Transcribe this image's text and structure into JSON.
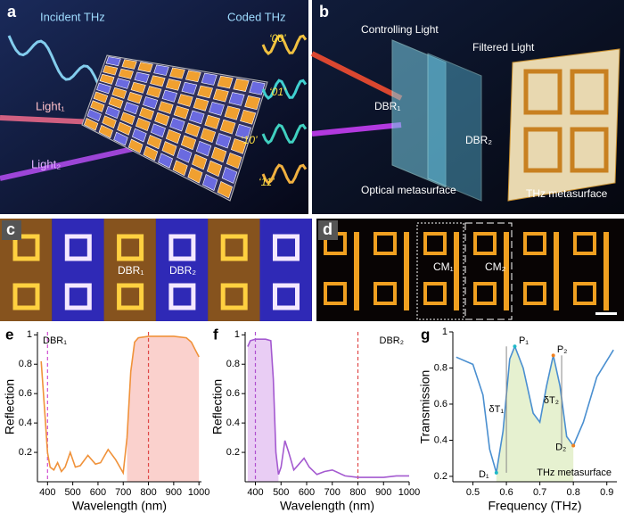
{
  "panels": {
    "a": {
      "label": "a",
      "incident": "Incident THz",
      "coded": "Coded THz",
      "codes": [
        "‘00’",
        "‘01’",
        "‘10’",
        "‘11’"
      ],
      "light1": "Light₁",
      "light2": "Light₂"
    },
    "b": {
      "label": "b",
      "controlling": "Controlling Light",
      "filtered": "Filtered Light",
      "dbr1": "DBR₁",
      "dbr2": "DBR₂",
      "optical": "Optical metasurface",
      "thz": "THz metasurface"
    },
    "c": {
      "label": "c",
      "dbr1": "DBR₁",
      "dbr2": "DBR₂"
    },
    "d": {
      "label": "d",
      "cm1": "CM₁",
      "cm2": "CM₂"
    }
  },
  "chart_data": [
    {
      "type": "line",
      "panel_label": "e",
      "tag": "DBR₁",
      "tag_corner": "top-left",
      "xlabel": "Wavelength (nm)",
      "ylabel": "Reflection",
      "x": [
        375,
        390,
        400,
        410,
        425,
        440,
        455,
        470,
        490,
        510,
        530,
        560,
        590,
        610,
        640,
        670,
        700,
        715,
        730,
        745,
        760,
        800,
        850,
        900,
        950,
        970,
        985,
        1000
      ],
      "series": [
        {
          "color": "#f0923a",
          "values": [
            0.82,
            0.45,
            0.2,
            0.1,
            0.08,
            0.13,
            0.07,
            0.1,
            0.2,
            0.1,
            0.11,
            0.18,
            0.12,
            0.13,
            0.22,
            0.15,
            0.06,
            0.3,
            0.75,
            0.95,
            0.98,
            0.99,
            0.99,
            0.99,
            0.98,
            0.95,
            0.9,
            0.85
          ]
        }
      ],
      "shade": {
        "from": 715,
        "to": 1000,
        "color": "#f07a70"
      },
      "vlines": [
        {
          "x": 400,
          "color": "#d050d0"
        },
        {
          "x": 800,
          "color": "#e04848"
        }
      ],
      "xlim": [
        360,
        1010
      ],
      "ylim": [
        0,
        1.02
      ],
      "xticks": [
        400,
        500,
        600,
        700,
        800,
        900,
        1000
      ],
      "yticks": [
        0.2,
        0.4,
        0.6,
        0.8,
        1
      ]
    },
    {
      "type": "line",
      "panel_label": "f",
      "tag": "DBR₂",
      "tag_corner": "top-right",
      "xlabel": "Wavelength (nm)",
      "ylabel": "Reflection",
      "x": [
        370,
        380,
        400,
        420,
        440,
        460,
        470,
        480,
        490,
        500,
        515,
        530,
        550,
        570,
        590,
        610,
        640,
        670,
        700,
        750,
        800,
        850,
        900,
        950,
        1000
      ],
      "series": [
        {
          "color": "#a45ad0",
          "values": [
            0.92,
            0.96,
            0.97,
            0.97,
            0.97,
            0.96,
            0.7,
            0.2,
            0.05,
            0.1,
            0.28,
            0.2,
            0.08,
            0.12,
            0.16,
            0.1,
            0.05,
            0.07,
            0.08,
            0.04,
            0.03,
            0.03,
            0.03,
            0.04,
            0.04
          ]
        }
      ],
      "shade": {
        "from": 370,
        "to": 490,
        "color": "#c070e0"
      },
      "vlines": [
        {
          "x": 400,
          "color": "#b050d0"
        },
        {
          "x": 800,
          "color": "#e04848"
        }
      ],
      "xlim": [
        360,
        1000
      ],
      "ylim": [
        0,
        1.02
      ],
      "xticks": [
        400,
        500,
        600,
        700,
        800,
        900,
        1000
      ],
      "yticks": [
        0.2,
        0.4,
        0.6,
        0.8,
        1
      ]
    },
    {
      "type": "line",
      "panel_label": "g",
      "tag": "THz metasurface",
      "tag_corner": "bottom-right",
      "xlabel": "Frequency (THz)",
      "ylabel": "Transmission",
      "x": [
        0.45,
        0.5,
        0.53,
        0.55,
        0.57,
        0.59,
        0.61,
        0.625,
        0.65,
        0.68,
        0.7,
        0.72,
        0.74,
        0.76,
        0.78,
        0.8,
        0.83,
        0.87,
        0.92
      ],
      "series": [
        {
          "color": "#4a8fd0",
          "values": [
            0.86,
            0.82,
            0.65,
            0.35,
            0.22,
            0.45,
            0.85,
            0.92,
            0.8,
            0.55,
            0.5,
            0.7,
            0.87,
            0.7,
            0.42,
            0.37,
            0.5,
            0.75,
            0.9
          ]
        }
      ],
      "shade": {
        "from": 0.57,
        "to": 0.8,
        "color": "#b8d878"
      },
      "annotations": [
        {
          "text": "P₁",
          "x": 0.625,
          "y": 0.92,
          "color": "#20b8c8"
        },
        {
          "text": "P₂",
          "x": 0.74,
          "y": 0.87,
          "color": "#f08020"
        },
        {
          "text": "D₁",
          "x": 0.57,
          "y": 0.22,
          "color": "#20b8c8"
        },
        {
          "text": "D₂",
          "x": 0.8,
          "y": 0.37,
          "color": "#f08020"
        }
      ],
      "brackets": [
        {
          "text": "δT₁",
          "x": 0.6,
          "y1": 0.22,
          "y2": 0.92
        },
        {
          "text": "δT₂",
          "x": 0.765,
          "y1": 0.37,
          "y2": 0.87
        }
      ],
      "xlim": [
        0.44,
        0.93
      ],
      "ylim": [
        0.17,
        1
      ],
      "xticks": [
        0.5,
        0.6,
        0.7,
        0.8,
        0.9
      ],
      "yticks": [
        0.2,
        0.4,
        0.6,
        0.8,
        1
      ]
    }
  ]
}
